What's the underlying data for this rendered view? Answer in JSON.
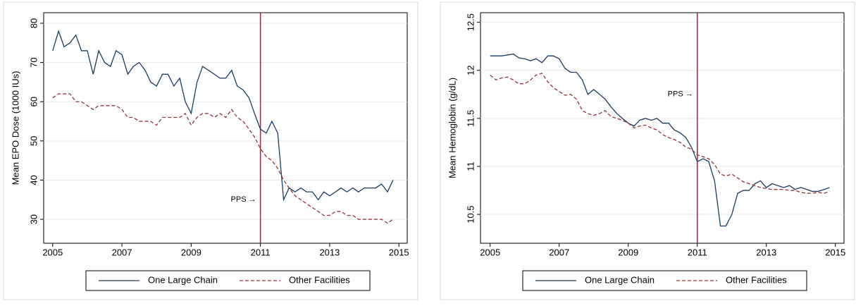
{
  "chart_data": [
    {
      "type": "line",
      "ylabel": "Mean EPO Dose (1000 IUs)",
      "x": [
        2005,
        2005.17,
        2005.33,
        2005.5,
        2005.67,
        2005.83,
        2006,
        2006.17,
        2006.33,
        2006.5,
        2006.67,
        2006.83,
        2007,
        2007.17,
        2007.33,
        2007.5,
        2007.67,
        2007.83,
        2008,
        2008.17,
        2008.33,
        2008.5,
        2008.67,
        2008.83,
        2009,
        2009.17,
        2009.33,
        2009.5,
        2009.67,
        2009.83,
        2010,
        2010.17,
        2010.33,
        2010.5,
        2010.67,
        2010.83,
        2011,
        2011.17,
        2011.33,
        2011.5,
        2011.67,
        2011.83,
        2012,
        2012.17,
        2012.33,
        2012.5,
        2012.67,
        2012.83,
        2013,
        2013.17,
        2013.33,
        2013.5,
        2013.67,
        2013.83,
        2014,
        2014.17,
        2014.33,
        2014.5,
        2014.67,
        2014.83
      ],
      "series": [
        {
          "name": "One Large Chain",
          "color": "#1c3b60",
          "dashed": false,
          "values": [
            73,
            78,
            74,
            75,
            77,
            73,
            73,
            67,
            73,
            70,
            69,
            73,
            72,
            67,
            69,
            70,
            68,
            65,
            64,
            67,
            67,
            64,
            66,
            60,
            57,
            65,
            69,
            68,
            67,
            66,
            66,
            68,
            64,
            63,
            61,
            57,
            53,
            52,
            55,
            52,
            35,
            38,
            37,
            38,
            37,
            37,
            35,
            37,
            36,
            37,
            38,
            37,
            38,
            37,
            38,
            38,
            38,
            39,
            37,
            40
          ]
        },
        {
          "name": "Other Facilities",
          "color": "#93363c",
          "dashed": true,
          "values": [
            61,
            62,
            62,
            62,
            60,
            60,
            59,
            58,
            59,
            59,
            59,
            59,
            58,
            56,
            56,
            55,
            55,
            55,
            54,
            56,
            56,
            56,
            56,
            57,
            54,
            56,
            57,
            57,
            56,
            57,
            56,
            58,
            56,
            55,
            53,
            51,
            48,
            46,
            45,
            43,
            40,
            38,
            36,
            35,
            34,
            33,
            32,
            31,
            31,
            32,
            32,
            31,
            31,
            30,
            30,
            30,
            30,
            30,
            29,
            30
          ]
        }
      ],
      "xlim": [
        2004.74,
        2015.24
      ],
      "xticks": [
        2005,
        2007,
        2009,
        2011,
        2013,
        2015
      ],
      "ylim": [
        23.9,
        82.7
      ],
      "yticks": [
        30,
        40,
        50,
        60,
        70,
        80
      ],
      "vline": {
        "x": 2011,
        "color": "#c0143c"
      },
      "annotation": {
        "text": "PPS →",
        "x": 2011,
        "y": 35
      },
      "grid": true,
      "legend": "bottom"
    },
    {
      "type": "line",
      "ylabel": "Mean Hemoglobin (g/dL)",
      "x": [
        2005,
        2005.17,
        2005.33,
        2005.5,
        2005.67,
        2005.83,
        2006,
        2006.17,
        2006.33,
        2006.5,
        2006.67,
        2006.83,
        2007,
        2007.17,
        2007.33,
        2007.5,
        2007.67,
        2007.83,
        2008,
        2008.17,
        2008.33,
        2008.5,
        2008.67,
        2008.83,
        2009,
        2009.17,
        2009.33,
        2009.5,
        2009.67,
        2009.83,
        2010,
        2010.17,
        2010.33,
        2010.5,
        2010.67,
        2010.83,
        2011,
        2011.17,
        2011.33,
        2011.5,
        2011.67,
        2011.83,
        2012,
        2012.17,
        2012.33,
        2012.5,
        2012.67,
        2012.83,
        2013,
        2013.17,
        2013.33,
        2013.5,
        2013.67,
        2013.83,
        2014,
        2014.17,
        2014.33,
        2014.5,
        2014.67,
        2014.83
      ],
      "series": [
        {
          "name": "One Large Chain",
          "color": "#1c3b60",
          "dashed": false,
          "values": [
            12.15,
            12.15,
            12.15,
            12.16,
            12.17,
            12.13,
            12.12,
            12.1,
            12.12,
            12.08,
            12.15,
            12.15,
            12.12,
            12.02,
            11.98,
            11.98,
            11.9,
            11.75,
            11.8,
            11.75,
            11.7,
            11.62,
            11.55,
            11.5,
            11.45,
            11.42,
            11.48,
            11.5,
            11.48,
            11.5,
            11.45,
            11.45,
            11.38,
            11.35,
            11.3,
            11.2,
            11.05,
            11.08,
            11.05,
            10.85,
            10.38,
            10.38,
            10.5,
            10.72,
            10.75,
            10.75,
            10.82,
            10.85,
            10.78,
            10.82,
            10.8,
            10.78,
            10.8,
            10.76,
            10.78,
            10.76,
            10.74,
            10.74,
            10.76,
            10.78
          ]
        },
        {
          "name": "Other Facilities",
          "color": "#93363c",
          "dashed": true,
          "values": [
            11.95,
            11.9,
            11.92,
            11.93,
            11.9,
            11.86,
            11.86,
            11.9,
            11.95,
            11.97,
            11.88,
            11.82,
            11.78,
            11.74,
            11.75,
            11.7,
            11.58,
            11.55,
            11.53,
            11.55,
            11.58,
            11.52,
            11.5,
            11.48,
            11.45,
            11.4,
            11.42,
            11.43,
            11.4,
            11.38,
            11.33,
            11.3,
            11.28,
            11.25,
            11.2,
            11.18,
            11.12,
            11.1,
            11.08,
            11.02,
            10.92,
            10.9,
            10.92,
            10.88,
            10.84,
            10.82,
            10.8,
            10.78,
            10.77,
            10.76,
            10.76,
            10.76,
            10.75,
            10.75,
            10.73,
            10.72,
            10.72,
            10.73,
            10.72,
            10.74
          ]
        }
      ],
      "xlim": [
        2004.72,
        2015.25
      ],
      "xticks": [
        2005,
        2007,
        2009,
        2011,
        2013,
        2015
      ],
      "ylim": [
        10.2,
        12.6
      ],
      "yticks": [
        10.5,
        11,
        11.5,
        12,
        12.5
      ],
      "vline": {
        "x": 2011,
        "color": "#c0143c"
      },
      "annotation": {
        "text": "PPS →",
        "x": 2011,
        "y": 11.75
      },
      "grid": true,
      "legend": "bottom"
    }
  ]
}
